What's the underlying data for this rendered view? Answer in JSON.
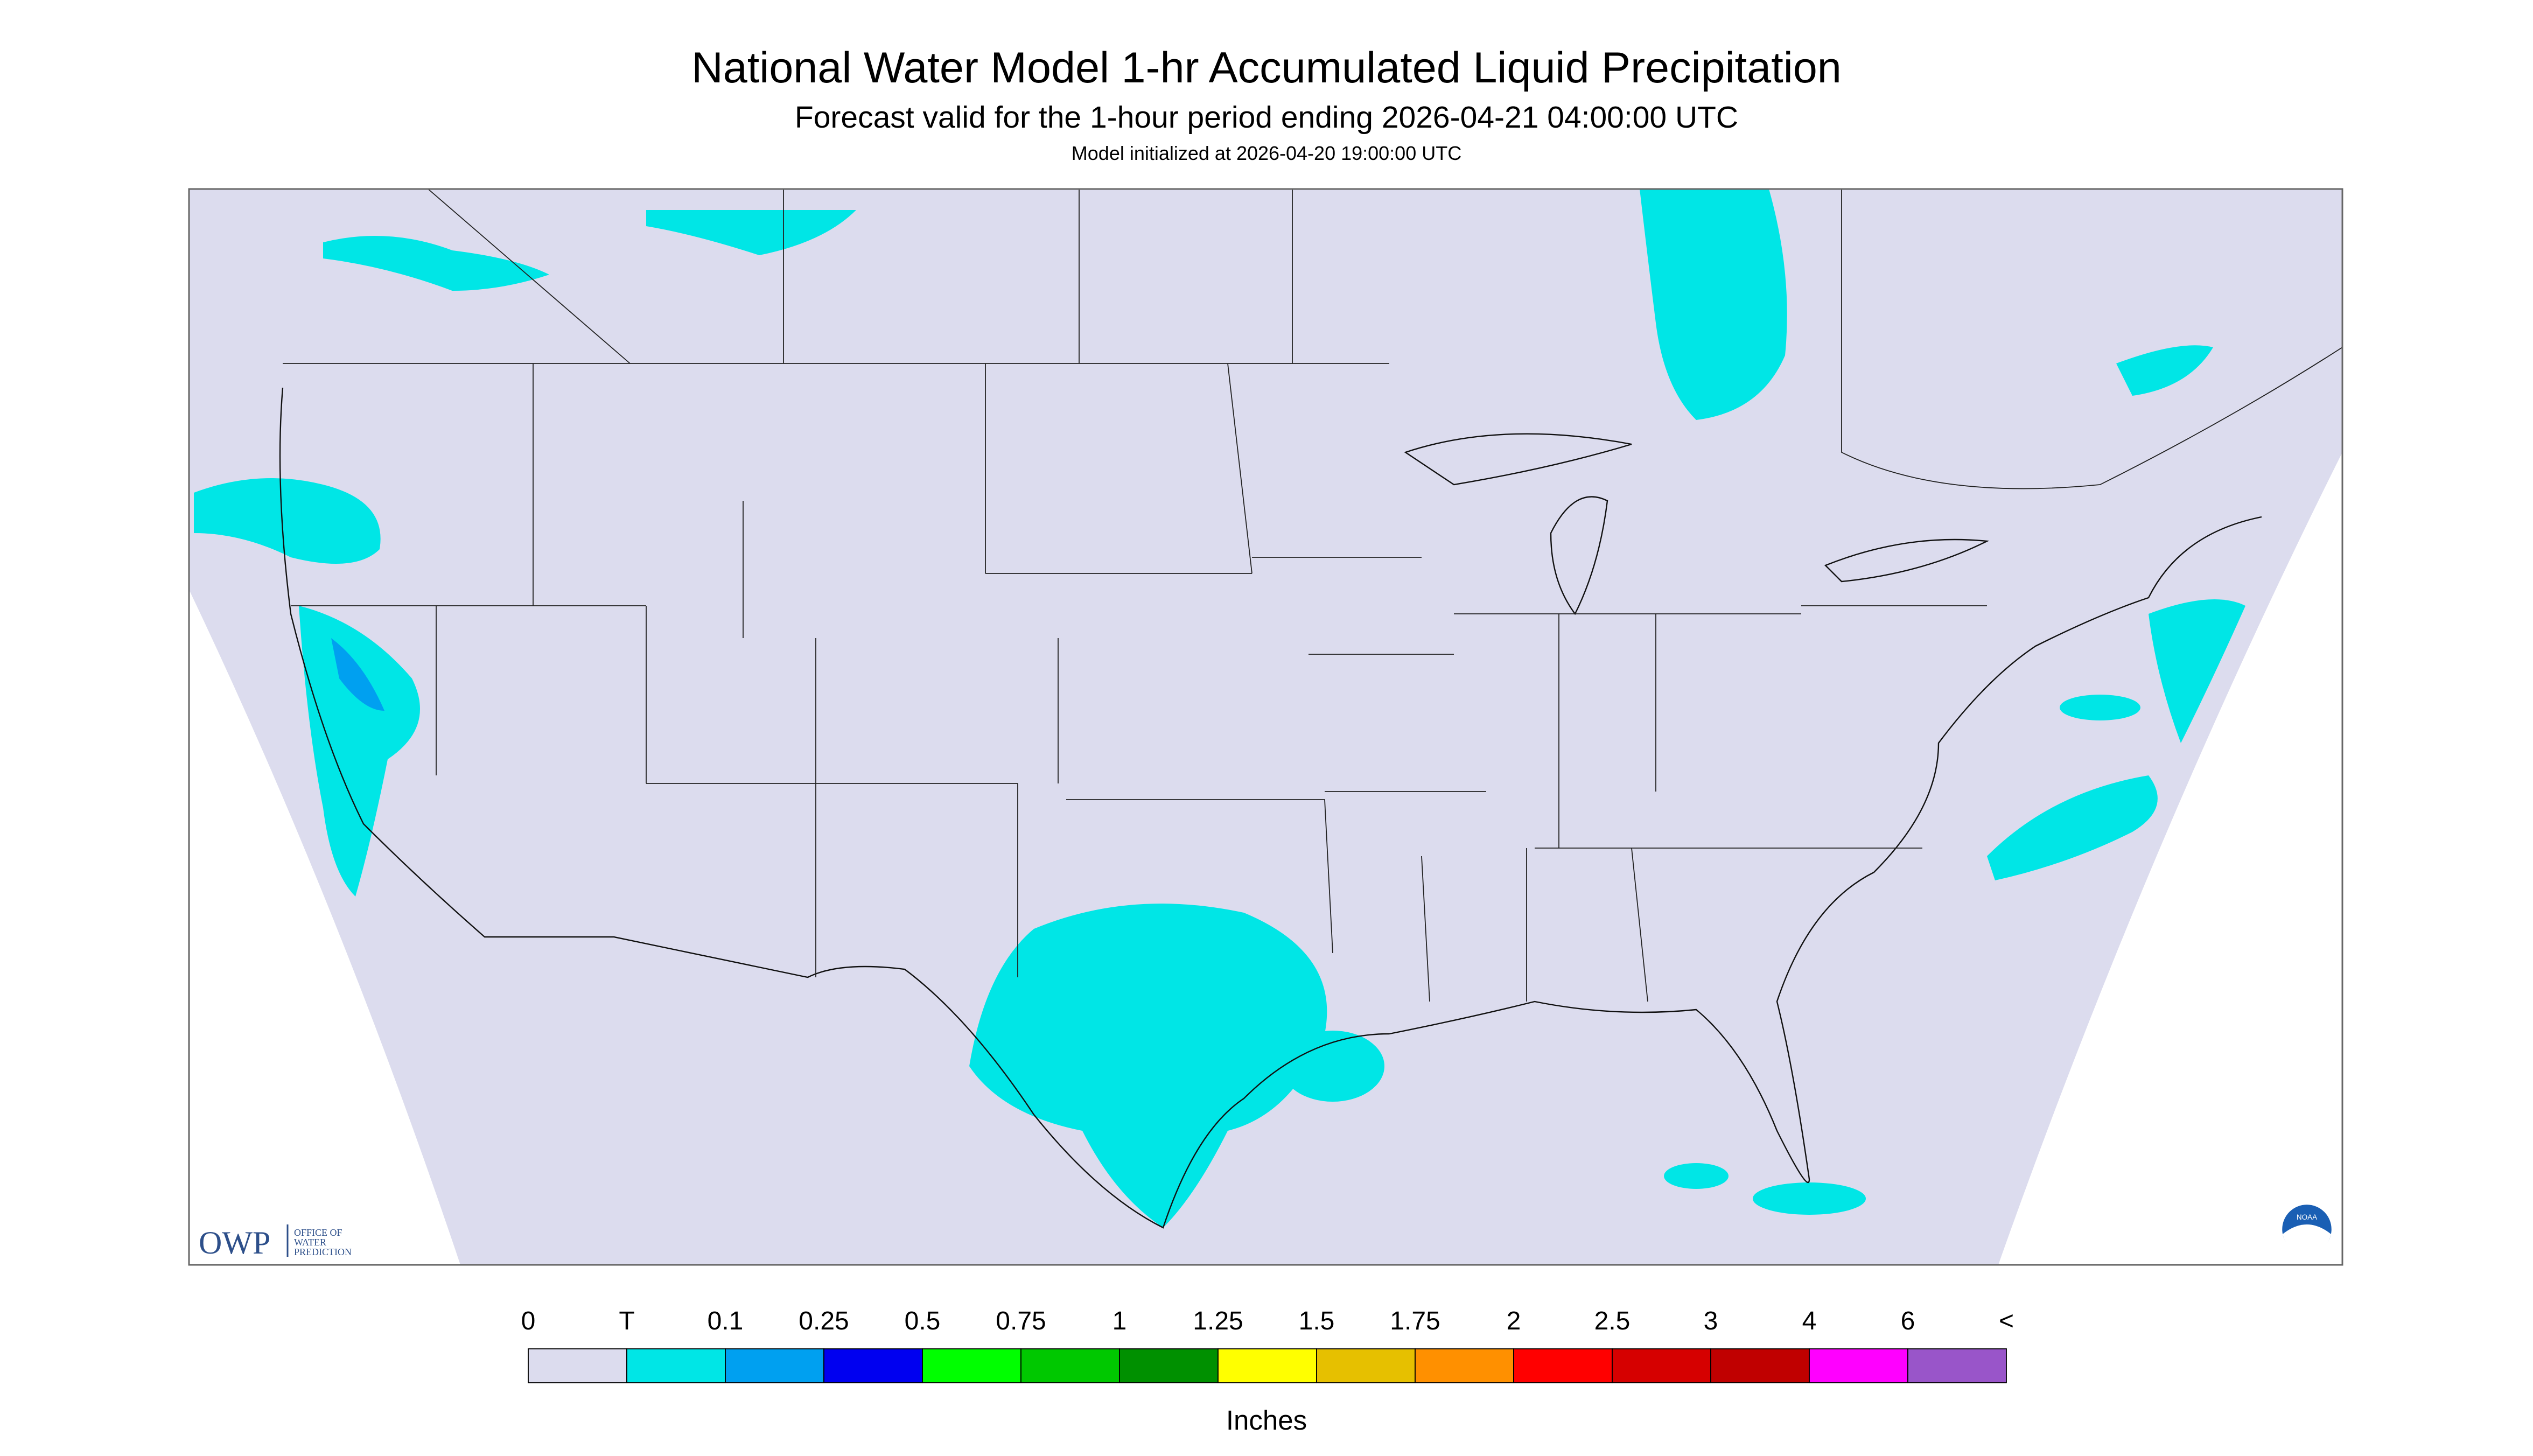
{
  "header": {
    "title": "National Water Model 1-hr Accumulated Liquid Precipitation",
    "subtitle": "Forecast valid for the 1-hour period ending 2026-04-21 04:00:00 UTC",
    "note": "Model initialized at 2026-04-20 19:00:00 UTC"
  },
  "logos": {
    "owp": "OWP",
    "owp_text": [
      "OFFICE OF",
      "WATER",
      "PREDICTION"
    ],
    "noaa": "NOAA"
  },
  "legend": {
    "labels": [
      "0",
      "T",
      "0.1",
      "0.25",
      "0.5",
      "0.75",
      "1",
      "1.25",
      "1.5",
      "1.75",
      "2",
      "2.5",
      "3",
      "4",
      "6",
      "<"
    ],
    "colors": [
      "#dcdcee",
      "#00e6e6",
      "#00a0f0",
      "#0000f0",
      "#00ff00",
      "#00c800",
      "#009000",
      "#ffff00",
      "#e6c000",
      "#ff9000",
      "#ff0000",
      "#d60000",
      "#c00000",
      "#ff00ff",
      "#9955c9"
    ],
    "unit": "Inches"
  }
}
